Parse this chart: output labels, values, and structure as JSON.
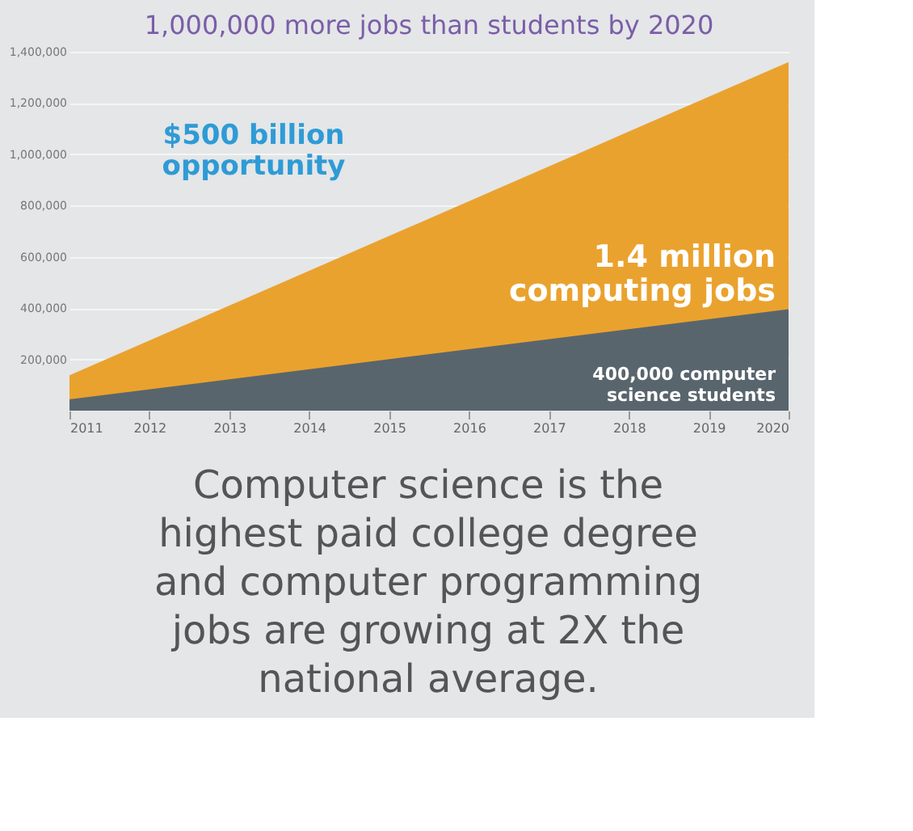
{
  "chart_data": {
    "type": "area",
    "title": "1,000,000 more jobs than students by 2020",
    "x": [
      2011,
      2020
    ],
    "series": [
      {
        "color": "#eaa22e",
        "values": [
          138000,
          1360000
        ]
      },
      {
        "color": "#59656d",
        "values": [
          44000,
          396000
        ]
      }
    ],
    "xlim": [
      2011,
      2020
    ],
    "xticks": [
      2011,
      2012,
      2013,
      2014,
      2015,
      2016,
      2017,
      2018,
      2019,
      2020
    ],
    "ylim": [
      0,
      1400000
    ],
    "yticks": [
      {
        "value": 200000,
        "label": "200,000"
      },
      {
        "value": 400000,
        "label": "400,000"
      },
      {
        "value": 600000,
        "label": "600,000"
      },
      {
        "value": 800000,
        "label": "800,000"
      },
      {
        "value": 1000000,
        "label": "1,000,000"
      },
      {
        "value": 1200000,
        "label": "1,200,000"
      },
      {
        "value": 1400000,
        "label": "1,400,000"
      }
    ],
    "grid": "y",
    "annotations": [
      "$500 billion\nopportunity",
      "1.4 million\ncomputing jobs",
      "400,000 computer\nscience students",
      "Computer science is the\nhighest paid college degree\nand computer programming\njobs are growing at 2X the\nnational average."
    ]
  }
}
